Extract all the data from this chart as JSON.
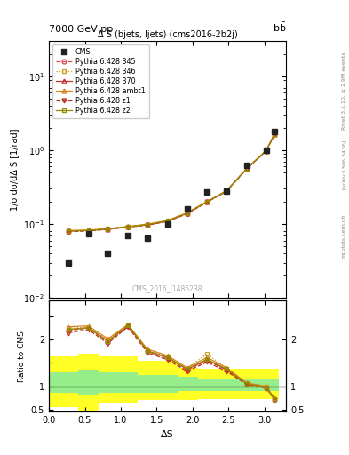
{
  "title_top": "7000 GeV pp",
  "title_right": "b$\\bar{\\rm b}$",
  "plot_title": "Δ S (bjets, ljets) (cms2016-2b2j)",
  "watermark": "CMS_2016_I1486238",
  "rivet_text": "Rivet 3.1.10, ≥ 2.9M events",
  "arxiv_text": "[arXiv:1306.3436]",
  "mcplots_text": "mcplots.cern.ch",
  "xlabel": "ΔS",
  "ylabel_main": "1/σ dσ/dΔ S [1/rad]",
  "ylabel_ratio": "Ratio to CMS",
  "cms_x": [
    0.27,
    0.55,
    0.82,
    1.1,
    1.37,
    1.65,
    1.92,
    2.2,
    2.47,
    2.75,
    3.02,
    3.14
  ],
  "cms_y": [
    0.03,
    0.075,
    0.04,
    0.07,
    0.065,
    0.1,
    0.16,
    0.27,
    0.28,
    0.62,
    1.0,
    1.8
  ],
  "mc_x": [
    0.27,
    0.55,
    0.82,
    1.1,
    1.37,
    1.65,
    1.92,
    2.2,
    2.47,
    2.75,
    3.02,
    3.14
  ],
  "p345_y": [
    0.08,
    0.082,
    0.086,
    0.092,
    0.098,
    0.11,
    0.14,
    0.2,
    0.28,
    0.56,
    0.98,
    1.65
  ],
  "p346_y": [
    0.082,
    0.083,
    0.087,
    0.093,
    0.099,
    0.112,
    0.142,
    0.202,
    0.282,
    0.562,
    0.985,
    1.66
  ],
  "p370_y": [
    0.081,
    0.082,
    0.086,
    0.092,
    0.098,
    0.11,
    0.14,
    0.2,
    0.28,
    0.56,
    0.98,
    1.65
  ],
  "pambt1_y": [
    0.082,
    0.083,
    0.087,
    0.093,
    0.1,
    0.112,
    0.142,
    0.202,
    0.283,
    0.563,
    0.99,
    1.66
  ],
  "pz1_y": [
    0.079,
    0.081,
    0.085,
    0.091,
    0.097,
    0.109,
    0.138,
    0.198,
    0.278,
    0.558,
    0.975,
    1.64
  ],
  "pz2_y": [
    0.081,
    0.082,
    0.086,
    0.092,
    0.099,
    0.111,
    0.141,
    0.201,
    0.281,
    0.561,
    0.982,
    1.655
  ],
  "ratio_x": [
    0.27,
    0.55,
    0.82,
    1.1,
    1.37,
    1.65,
    1.92,
    2.2,
    2.47,
    2.75,
    3.02,
    3.14
  ],
  "ratio_p345": [
    2.2,
    2.25,
    1.95,
    2.3,
    1.75,
    1.6,
    1.35,
    1.55,
    1.35,
    1.05,
    0.97,
    0.72
  ],
  "ratio_p346": [
    2.25,
    2.28,
    2.0,
    2.32,
    1.78,
    1.65,
    1.38,
    1.7,
    1.38,
    1.06,
    0.99,
    0.73
  ],
  "ratio_p370": [
    2.22,
    2.26,
    1.97,
    2.31,
    1.76,
    1.62,
    1.36,
    1.57,
    1.36,
    1.06,
    0.98,
    0.725
  ],
  "ratio_pambt1": [
    2.28,
    2.3,
    2.02,
    2.33,
    1.8,
    1.66,
    1.4,
    1.62,
    1.4,
    1.07,
    1.0,
    0.735
  ],
  "ratio_pz1": [
    2.15,
    2.22,
    1.92,
    2.28,
    1.72,
    1.57,
    1.32,
    1.52,
    1.32,
    1.04,
    0.96,
    0.71
  ],
  "ratio_pz2": [
    2.22,
    2.26,
    1.97,
    2.31,
    1.76,
    1.62,
    1.37,
    1.58,
    1.37,
    1.055,
    0.975,
    0.722
  ],
  "band_x_edges": [
    0.0,
    0.41,
    0.69,
    1.24,
    1.79,
    2.07,
    2.9,
    3.2
  ],
  "band_green_lo": [
    0.85,
    0.8,
    0.85,
    0.85,
    0.9,
    0.9,
    0.9,
    0.9
  ],
  "band_green_hi": [
    1.3,
    1.35,
    1.3,
    1.25,
    1.2,
    1.15,
    1.15,
    1.15
  ],
  "band_yellow_lo": [
    0.55,
    0.45,
    0.65,
    0.7,
    0.7,
    0.72,
    0.72,
    0.72
  ],
  "band_yellow_hi": [
    1.65,
    1.7,
    1.65,
    1.55,
    1.4,
    1.38,
    1.38,
    1.38
  ],
  "ylim_main": [
    0.01,
    30
  ],
  "ylim_ratio": [
    0.45,
    2.85
  ],
  "xlim": [
    0.0,
    3.3
  ],
  "colors": {
    "cms": "#222222",
    "p345": "#e05050",
    "p346": "#c8a020",
    "p370": "#c83030",
    "pambt1": "#e08020",
    "pz1": "#c03020",
    "pz2": "#909000"
  }
}
